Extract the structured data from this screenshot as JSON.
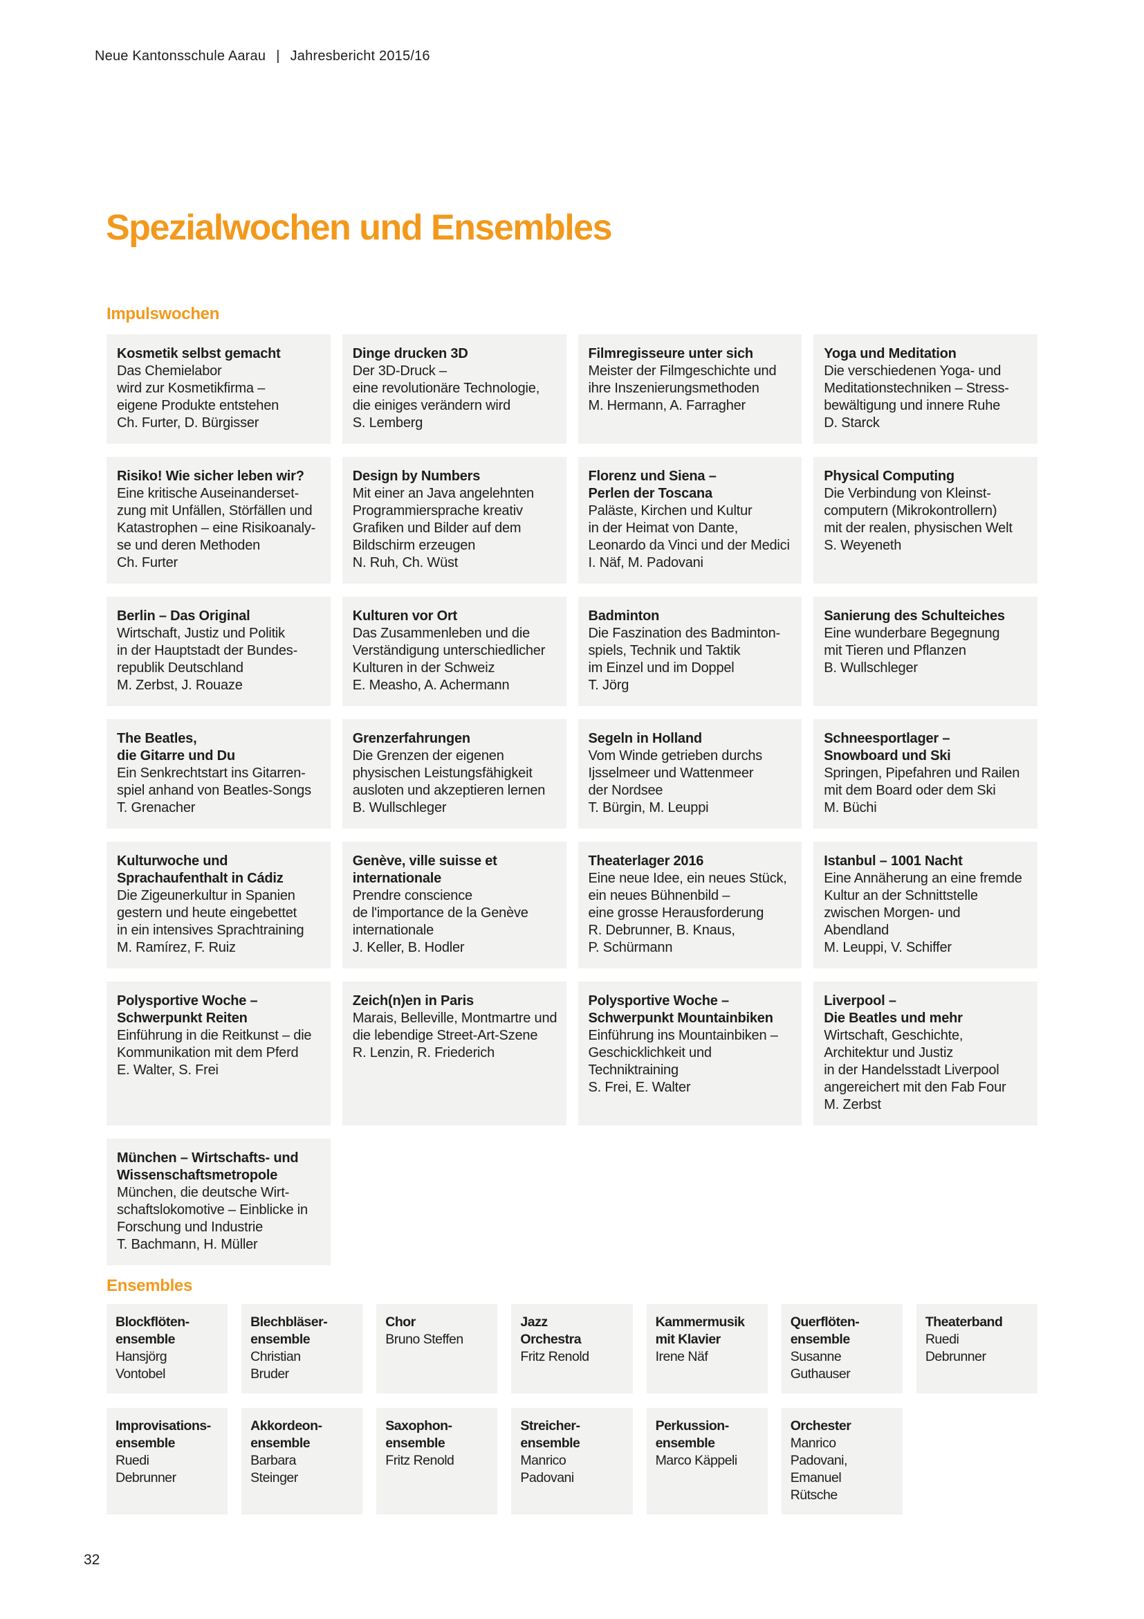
{
  "header": {
    "school": "Neue Kantonsschule Aarau",
    "separator": "|",
    "report": "Jahresbericht 2015/16"
  },
  "title": "Spezialwochen und Ensembles",
  "page_number": "32",
  "colors": {
    "accent_orange": "#f2991d",
    "card_background": "#f2f2f0",
    "text": "#1d1d1b"
  },
  "sections": {
    "impulswochen": {
      "heading": "Impulswochen",
      "cards": [
        {
          "title_lines": [
            "Kosmetik selbst gemacht"
          ],
          "description_lines": [
            "Das Chemielabor",
            "wird zur Kosmetikfirma –",
            "eigene Produkte entstehen"
          ],
          "leader_lines": [
            "Ch. Furter, D. Bürgisser"
          ]
        },
        {
          "title_lines": [
            "Dinge drucken 3D"
          ],
          "description_lines": [
            "Der 3D-Druck –",
            "eine revolutionäre Technologie,",
            "die einiges verändern wird"
          ],
          "leader_lines": [
            "S. Lemberg"
          ]
        },
        {
          "title_lines": [
            "Filmregisseure unter sich"
          ],
          "description_lines": [
            "Meister der Filmgeschichte und",
            "ihre Inszenierungsmethoden"
          ],
          "leader_lines": [
            "M. Hermann, A. Farragher"
          ]
        },
        {
          "title_lines": [
            "Yoga und Meditation"
          ],
          "description_lines": [
            "Die verschiedenen Yoga- und",
            "Meditationstechniken – Stress-",
            "bewältigung und innere Ruhe"
          ],
          "leader_lines": [
            "D. Starck"
          ]
        },
        {
          "title_lines": [
            "Risiko! Wie sicher leben wir?"
          ],
          "description_lines": [
            "Eine kritische Auseinanderset-",
            "zung mit Unfällen, Störfällen und",
            "Katastrophen – eine Risikoanaly-",
            "se und deren Methoden"
          ],
          "leader_lines": [
            "Ch. Furter"
          ]
        },
        {
          "title_lines": [
            "Design by Numbers"
          ],
          "description_lines": [
            "Mit einer an Java angelehnten",
            "Programmiersprache kreativ",
            "Grafiken und Bilder auf dem",
            "Bildschirm erzeugen"
          ],
          "leader_lines": [
            "N. Ruh, Ch. Wüst"
          ]
        },
        {
          "title_lines": [
            "Florenz und Siena –",
            "Perlen der Toscana"
          ],
          "description_lines": [
            "Paläste, Kirchen und Kultur",
            "in der Heimat von Dante,",
            "Leonardo da Vinci und der Medici"
          ],
          "leader_lines": [
            "I. Näf, M. Padovani"
          ]
        },
        {
          "title_lines": [
            "Physical Computing"
          ],
          "description_lines": [
            "Die Verbindung von Kleinst-",
            "computern (Mikrokontrollern)",
            "mit der realen, physischen Welt"
          ],
          "leader_lines": [
            "S. Weyeneth"
          ]
        },
        {
          "title_lines": [
            "Berlin – Das Original"
          ],
          "description_lines": [
            "Wirtschaft, Justiz und Politik",
            "in der Hauptstadt der Bundes-",
            "republik Deutschland"
          ],
          "leader_lines": [
            "M. Zerbst, J. Rouaze"
          ]
        },
        {
          "title_lines": [
            "Kulturen vor Ort"
          ],
          "description_lines": [
            "Das Zusammenleben und die",
            "Verständigung unterschiedlicher",
            "Kulturen in der Schweiz"
          ],
          "leader_lines": [
            "E. Measho, A. Achermann"
          ]
        },
        {
          "title_lines": [
            "Badminton"
          ],
          "description_lines": [
            "Die Faszination des Badminton-",
            "spiels, Technik und Taktik",
            "im Einzel und im Doppel"
          ],
          "leader_lines": [
            "T. Jörg"
          ]
        },
        {
          "title_lines": [
            "Sanierung des Schulteiches"
          ],
          "description_lines": [
            "Eine wunderbare Begegnung",
            "mit Tieren und Pflanzen"
          ],
          "leader_lines": [
            "B. Wullschleger"
          ]
        },
        {
          "title_lines": [
            "The Beatles,",
            "die Gitarre und Du"
          ],
          "description_lines": [
            "Ein Senkrechtstart ins Gitarren-",
            "spiel anhand von Beatles-Songs"
          ],
          "leader_lines": [
            "T. Grenacher"
          ]
        },
        {
          "title_lines": [
            "Grenzerfahrungen"
          ],
          "description_lines": [
            "Die Grenzen der eigenen",
            "physischen Leistungsfähigkeit",
            "ausloten und akzeptieren lernen"
          ],
          "leader_lines": [
            "B. Wullschleger"
          ]
        },
        {
          "title_lines": [
            "Segeln in Holland"
          ],
          "description_lines": [
            "Vom Winde getrieben durchs",
            "Ijsselmeer und Wattenmeer",
            "der Nordsee"
          ],
          "leader_lines": [
            "T. Bürgin, M. Leuppi"
          ]
        },
        {
          "title_lines": [
            "Schneesportlager –",
            "Snowboard und Ski"
          ],
          "description_lines": [
            "Springen, Pipefahren und Railen",
            "mit dem Board oder dem Ski"
          ],
          "leader_lines": [
            "M. Büchi"
          ]
        },
        {
          "title_lines": [
            "Kulturwoche und",
            "Sprachaufenthalt in Cádiz"
          ],
          "description_lines": [
            "Die Zigeunerkultur in Spanien",
            "gestern und heute eingebettet",
            "in ein intensives Sprachtraining"
          ],
          "leader_lines": [
            "M. Ramírez, F. Ruiz"
          ]
        },
        {
          "title_lines": [
            "Genève, ville suisse et",
            "internationale"
          ],
          "description_lines": [
            "Prendre conscience",
            "de l'importance de la Genève",
            "internationale"
          ],
          "leader_lines": [
            "J. Keller, B. Hodler"
          ]
        },
        {
          "title_lines": [
            "Theaterlager 2016"
          ],
          "description_lines": [
            "Eine neue Idee, ein neues Stück,",
            "ein neues Bühnenbild –",
            "eine grosse Herausforderung"
          ],
          "leader_lines": [
            "R. Debrunner, B. Knaus,",
            "P. Schürmann"
          ]
        },
        {
          "title_lines": [
            "Istanbul – 1001 Nacht"
          ],
          "description_lines": [
            "Eine Annäherung an eine fremde",
            "Kultur an der Schnittstelle",
            "zwischen Morgen- und",
            "Abendland"
          ],
          "leader_lines": [
            "M. Leuppi, V. Schiffer"
          ]
        },
        {
          "title_lines": [
            "Polysportive Woche –",
            "Schwerpunkt Reiten"
          ],
          "description_lines": [
            "Einführung in die Reitkunst – die",
            "Kommunikation mit dem Pferd"
          ],
          "leader_lines": [
            "E. Walter, S. Frei"
          ]
        },
        {
          "title_lines": [
            "Zeich(n)en in Paris"
          ],
          "description_lines": [
            "Marais, Belleville, Montmartre und",
            "die lebendige Street-Art-Szene"
          ],
          "leader_lines": [
            "R. Lenzin, R. Friederich"
          ]
        },
        {
          "title_lines": [
            "Polysportive Woche –",
            "Schwerpunkt Mountainbiken"
          ],
          "description_lines": [
            "Einführung ins Mountainbiken –",
            "Geschicklichkeit und",
            "Techniktraining"
          ],
          "leader_lines": [
            "S. Frei, E. Walter"
          ]
        },
        {
          "title_lines": [
            "Liverpool –",
            "Die Beatles und mehr"
          ],
          "description_lines": [
            "Wirtschaft, Geschichte,",
            "Architektur und Justiz",
            "in der Handelsstadt Liverpool",
            "angereichert mit den Fab Four"
          ],
          "leader_lines": [
            "M. Zerbst"
          ]
        },
        {
          "title_lines": [
            "München – Wirtschafts- und",
            "Wissenschaftsmetropole"
          ],
          "description_lines": [
            "München, die deutsche Wirt-",
            "schaftslokomotive – Einblicke in",
            "Forschung und Industrie"
          ],
          "leader_lines": [
            "T. Bachmann, H. Müller"
          ]
        }
      ]
    },
    "ensembles": {
      "heading": "Ensembles",
      "cards": [
        {
          "title_lines": [
            "Blockflöten-",
            "ensemble"
          ],
          "leader_lines": [
            "Hansjörg",
            "Vontobel"
          ]
        },
        {
          "title_lines": [
            "Blechbläser-",
            "ensemble"
          ],
          "leader_lines": [
            "Christian",
            "Bruder"
          ]
        },
        {
          "title_lines": [
            "Chor"
          ],
          "leader_lines": [
            "Bruno Steffen"
          ]
        },
        {
          "title_lines": [
            "Jazz",
            "Orchestra"
          ],
          "leader_lines": [
            "Fritz Renold"
          ]
        },
        {
          "title_lines": [
            "Kammermusik",
            "mit Klavier"
          ],
          "leader_lines": [
            "Irene Näf"
          ]
        },
        {
          "title_lines": [
            "Querflöten-",
            "ensemble"
          ],
          "leader_lines": [
            "Susanne",
            "Guthauser"
          ]
        },
        {
          "title_lines": [
            "Theaterband"
          ],
          "leader_lines": [
            "Ruedi",
            "Debrunner"
          ]
        },
        {
          "title_lines": [
            "Improvisations-",
            "ensemble"
          ],
          "leader_lines": [
            "Ruedi",
            "Debrunner"
          ]
        },
        {
          "title_lines": [
            "Akkordeon-",
            "ensemble"
          ],
          "leader_lines": [
            "Barbara",
            "Steinger"
          ]
        },
        {
          "title_lines": [
            "Saxophon-",
            "ensemble"
          ],
          "leader_lines": [
            "Fritz Renold"
          ]
        },
        {
          "title_lines": [
            "Streicher-",
            "ensemble"
          ],
          "leader_lines": [
            "Manrico",
            "Padovani"
          ]
        },
        {
          "title_lines": [
            "Perkussion-",
            "ensemble"
          ],
          "leader_lines": [
            "Marco Käppeli"
          ]
        },
        {
          "title_lines": [
            "Orchester"
          ],
          "leader_lines": [
            "Manrico",
            "Padovani,",
            "Emanuel",
            "Rütsche"
          ]
        }
      ]
    }
  }
}
